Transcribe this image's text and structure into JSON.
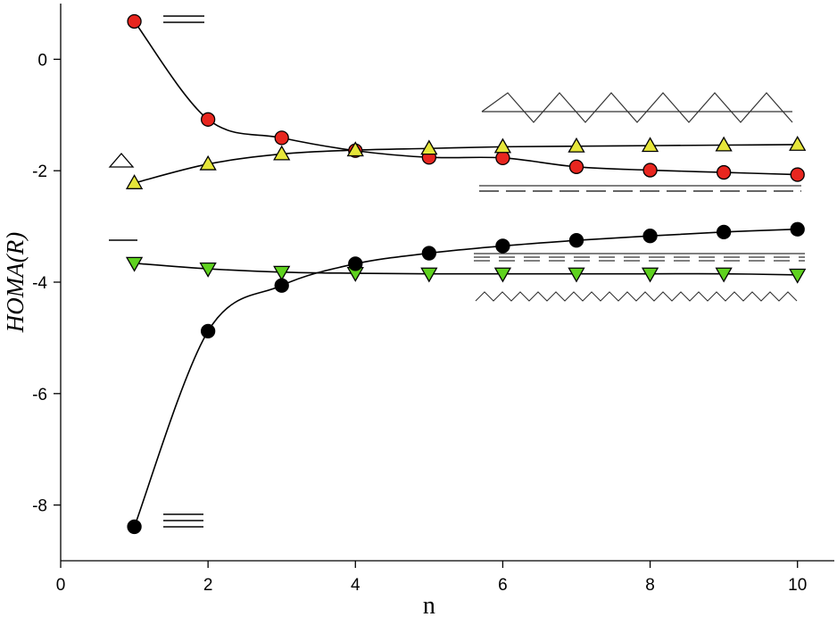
{
  "chart_data": {
    "type": "scatter",
    "title": "",
    "xlabel": "n",
    "ylabel": "HOMA(R)",
    "xlim": [
      0,
      10.5
    ],
    "ylim": [
      -9,
      1
    ],
    "xticks": [
      "0",
      "2",
      "4",
      "6",
      "8",
      "10"
    ],
    "yticks": [
      "0",
      "-2",
      "-4",
      "-6",
      "-8"
    ],
    "x": [
      1,
      2,
      3,
      4,
      5,
      6,
      7,
      8,
      9,
      10
    ],
    "series": [
      {
        "marker": "circle",
        "fill": "#e8261f",
        "values": [
          0.68,
          -1.08,
          -1.41,
          -1.64,
          -1.76,
          -1.77,
          -1.93,
          -1.99,
          -2.03,
          -2.07
        ]
      },
      {
        "marker": "triangle-up",
        "fill": "#e6e63a",
        "values": [
          -2.22,
          -1.88,
          -1.7,
          -1.63,
          -1.6,
          -1.57,
          -1.56,
          -1.55,
          -1.54,
          -1.53
        ]
      },
      {
        "marker": "triangle-down",
        "fill": "#5fd21f",
        "values": [
          -3.66,
          -3.76,
          -3.82,
          -3.84,
          -3.85,
          -3.85,
          -3.85,
          -3.85,
          -3.85,
          -3.87
        ]
      },
      {
        "marker": "circle",
        "fill": "#000000",
        "values": [
          -8.39,
          -4.88,
          -4.06,
          -3.67,
          -3.48,
          -3.35,
          -3.25,
          -3.17,
          -3.1,
          -3.05
        ]
      }
    ],
    "grid": false,
    "legend": "none"
  },
  "colors": {
    "axis": "#000000",
    "fit_line": "#000000",
    "glyph_line": "#333333"
  }
}
